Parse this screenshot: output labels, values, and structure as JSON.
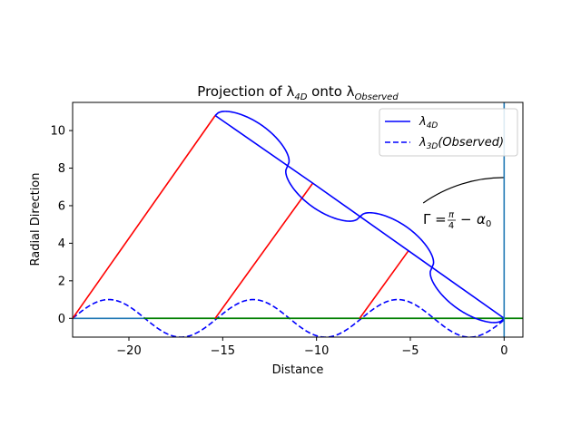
{
  "chart_data": {
    "type": "line",
    "title": "Projection of λ4D onto λObserved",
    "title_parts": {
      "prefix": "Projection of λ",
      "sub1": "4D",
      "middle": " onto λ",
      "sub2": "Observed"
    },
    "xlabel": "Distance",
    "ylabel": "Radial Direction",
    "xlim": [
      -23,
      1
    ],
    "ylim": [
      -1,
      11.5
    ],
    "x_ticks": [
      -20,
      -15,
      -10,
      -5,
      0
    ],
    "y_ticks": [
      0,
      2,
      4,
      6,
      8,
      10
    ],
    "x_tick_labels": [
      "−20",
      "−15",
      "−10",
      "−5",
      "0"
    ],
    "y_tick_labels": [
      "0",
      "2",
      "4",
      "6",
      "8",
      "10"
    ],
    "grid": false,
    "legend_placement": "top-right",
    "legend": [
      {
        "name": "λ4D",
        "base": "λ",
        "sub": "4D",
        "style": "solid",
        "color": "#0000ff"
      },
      {
        "name": "λ3D(Observed)",
        "base": "λ",
        "sub": "3D",
        "suffix": "(Observed)",
        "style": "dashed",
        "color": "#0000ff"
      }
    ],
    "annotation": {
      "text": "Γ = π/4 − α0",
      "gamma": "Γ =",
      "num": "π",
      "den": "4",
      "minus": "−",
      "alpha": "α",
      "alpha_sub": "0",
      "x": -4.4,
      "y": 5.1
    },
    "lambda_4d_line": {
      "x": [
        -15.4,
        -10.2,
        -5.1,
        0
      ],
      "y": [
        10.8,
        7.2,
        3.6,
        0
      ]
    },
    "lambda_4d_wave": {
      "amplitude": 1.0,
      "period": 7.7,
      "x_start": -15.4,
      "x_end": 0
    },
    "red_lines": [
      {
        "x": [
          -23,
          -15.4
        ],
        "y": [
          0,
          10.8
        ]
      },
      {
        "x": [
          -15.4,
          -10.2
        ],
        "y": [
          0,
          7.2
        ]
      },
      {
        "x": [
          -7.7,
          -5.1
        ],
        "y": [
          0,
          3.6
        ]
      }
    ],
    "observed_wave": {
      "amplitude": 1.0,
      "period": 7.7,
      "x_start": -23,
      "x_end": 0
    },
    "horizontal_green": {
      "y": 0,
      "x": [
        -19.2,
        1
      ]
    },
    "horizontal_blue": {
      "y": 0,
      "x": [
        -23,
        -19.2
      ]
    },
    "vertical_blue": {
      "x": 0,
      "y": [
        -1,
        11.5
      ]
    },
    "arc": {
      "radius": 7.5,
      "from_deg": 90,
      "to_deg": 125
    },
    "colors": {
      "lambda_4d": "#0000ff",
      "red": "#ff0000",
      "green": "#008000",
      "steel_blue": "#1f77b4",
      "arc": "#000000"
    }
  }
}
